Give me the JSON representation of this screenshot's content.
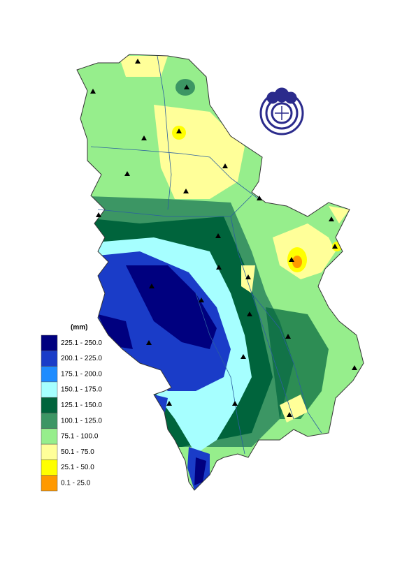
{
  "legend": {
    "title": "(mm)",
    "items": [
      {
        "label": "225.1 - 250.0",
        "color": "#00007f"
      },
      {
        "label": "200.1 - 225.0",
        "color": "#1a3cc8"
      },
      {
        "label": "175.1 - 200.0",
        "color": "#1e8cff"
      },
      {
        "label": "150.1 - 175.0",
        "color": "#a6ffff"
      },
      {
        "label": "125.1 - 150.0",
        "color": "#00643c"
      },
      {
        "label": "100.1 - 125.0",
        "color": "#3c9664"
      },
      {
        "label": "75.1 - 100.0",
        "color": "#96ee8c"
      },
      {
        "label": "50.1 - 75.0",
        "color": "#ffff99"
      },
      {
        "label": "25.1 - 50.0",
        "color": "#ffff00"
      },
      {
        "label": "0.1 - 25.0",
        "color": "#ff9900"
      }
    ]
  }
}
